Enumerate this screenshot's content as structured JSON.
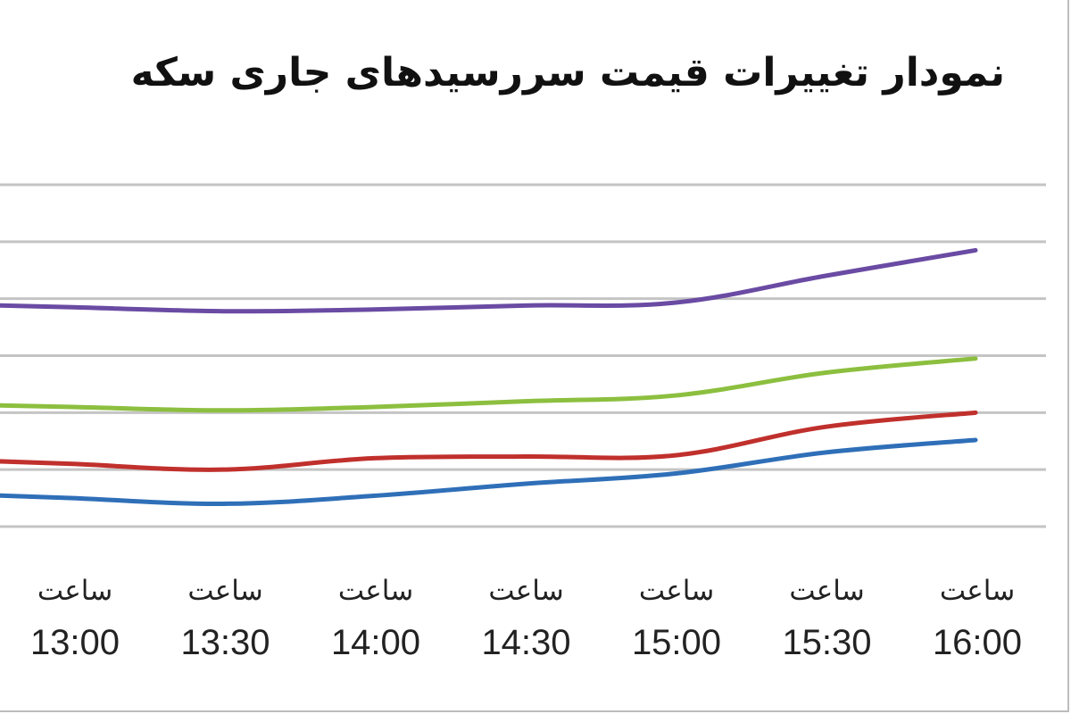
{
  "chart_data": {
    "type": "line",
    "title": "نمودار تغییرات قیمت سررسیدهای جاری سکه",
    "categories": [
      {
        "prefix": "ساعت",
        "time": "13:00"
      },
      {
        "prefix": "ساعت",
        "time": "13:30"
      },
      {
        "prefix": "ساعت",
        "time": "14:00"
      },
      {
        "prefix": "ساعت",
        "time": "14:30"
      },
      {
        "prefix": "ساعت",
        "time": "15:00"
      },
      {
        "prefix": "ساعت",
        "time": "15:30"
      },
      {
        "prefix": "ساعت",
        "time": "16:00"
      }
    ],
    "ylim": [
      0,
      6
    ],
    "grid": true,
    "series": [
      {
        "color": "#6a4ba3",
        "values": [
          3.85,
          3.78,
          3.81,
          3.88,
          3.93,
          4.4,
          4.85
        ]
      },
      {
        "color": "#8cbf3f",
        "values": [
          2.1,
          2.04,
          2.1,
          2.2,
          2.3,
          2.7,
          2.95
        ]
      },
      {
        "color": "#c0302c",
        "values": [
          1.1,
          1.0,
          1.2,
          1.23,
          1.25,
          1.75,
          2.0
        ]
      },
      {
        "color": "#2f6fb8",
        "values": [
          0.5,
          0.4,
          0.54,
          0.75,
          0.93,
          1.3,
          1.52
        ]
      }
    ]
  }
}
